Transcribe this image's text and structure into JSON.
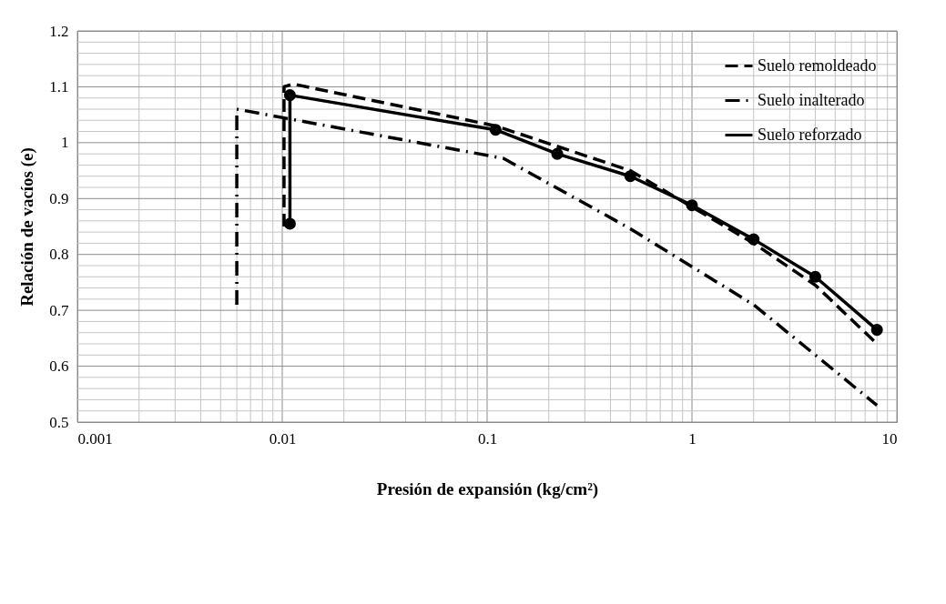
{
  "chart_data": {
    "type": "line",
    "xlabel": "Presión de expansión (kg/cm²)",
    "ylabel": "Relación de vacíos (e)",
    "log": "x",
    "grid": true,
    "legend": "top right",
    "xlim": [
      0.001,
      10
    ],
    "ylim": [
      0.5,
      1.2
    ],
    "xticks": [
      0.001,
      {
        "value": 0.002,
        "label": null
      },
      {
        "value": 0.003,
        "label": null
      },
      {
        "value": 0.004,
        "label": null
      },
      {
        "value": 0.005,
        "label": null
      },
      {
        "value": 0.006,
        "label": null
      },
      {
        "value": 0.007,
        "label": null
      },
      {
        "value": 0.008,
        "label": null
      },
      {
        "value": 0.009,
        "label": null
      },
      0.01,
      {
        "value": 0.02,
        "label": null
      },
      {
        "value": 0.03,
        "label": null
      },
      {
        "value": 0.04,
        "label": null
      },
      {
        "value": 0.05,
        "label": null
      },
      {
        "value": 0.06,
        "label": null
      },
      {
        "value": 0.07,
        "label": null
      },
      {
        "value": 0.08,
        "label": null
      },
      {
        "value": 0.09,
        "label": null
      },
      0.1,
      {
        "value": 0.2,
        "label": null
      },
      {
        "value": 0.3,
        "label": null
      },
      {
        "value": 0.4,
        "label": null
      },
      {
        "value": 0.5,
        "label": null
      },
      {
        "value": 0.6,
        "label": null
      },
      {
        "value": 0.7,
        "label": null
      },
      {
        "value": 0.8,
        "label": null
      },
      {
        "value": 0.9,
        "label": null
      },
      1,
      {
        "value": 2,
        "label": null
      },
      {
        "value": 3,
        "label": null
      },
      {
        "value": 4,
        "label": null
      },
      {
        "value": 5,
        "label": null
      },
      {
        "value": 6,
        "label": null
      },
      {
        "value": 7,
        "label": null
      },
      {
        "value": 8,
        "label": null
      },
      {
        "value": 9,
        "label": null
      },
      10
    ],
    "yticks": [
      0.5,
      {
        "value": 0.52,
        "label": null
      },
      {
        "value": 0.54,
        "label": null
      },
      {
        "value": 0.56,
        "label": null
      },
      {
        "value": 0.58,
        "label": null
      },
      0.6,
      {
        "value": 0.62,
        "label": null
      },
      {
        "value": 0.64,
        "label": null
      },
      {
        "value": 0.66,
        "label": null
      },
      {
        "value": 0.68,
        "label": null
      },
      0.7,
      {
        "value": 0.72,
        "label": null
      },
      {
        "value": 0.74,
        "label": null
      },
      {
        "value": 0.76,
        "label": null
      },
      {
        "value": 0.78,
        "label": null
      },
      0.8,
      {
        "value": 0.82,
        "label": null
      },
      {
        "value": 0.84,
        "label": null
      },
      {
        "value": 0.86,
        "label": null
      },
      {
        "value": 0.88,
        "label": null
      },
      0.9,
      {
        "value": 0.92,
        "label": null
      },
      {
        "value": 0.94,
        "label": null
      },
      {
        "value": 0.96,
        "label": null
      },
      {
        "value": 0.98,
        "label": null
      },
      1,
      {
        "value": 1.02,
        "label": null
      },
      {
        "value": 1.04,
        "label": null
      },
      {
        "value": 1.06,
        "label": null
      },
      {
        "value": 1.08,
        "label": null
      },
      1.1,
      {
        "value": 1.12,
        "label": null
      },
      {
        "value": 1.14,
        "label": null
      },
      {
        "value": 1.16,
        "label": null
      },
      {
        "value": 1.18,
        "label": null
      },
      1.2
    ],
    "series": [
      {
        "name": "Suelo remoldeado",
        "color": "#000000",
        "line_style": "dashed",
        "marker": "none",
        "x": [
          0.0102,
          0.0102,
          0.0113,
          0.11,
          0.5,
          1,
          2,
          4,
          8
        ],
        "values": [
          0.85,
          1.1,
          1.105,
          1.03,
          0.95,
          0.885,
          0.82,
          0.745,
          0.64
        ]
      },
      {
        "name": "Suelo inalterado",
        "color": "#000000",
        "line_style": "dashdot",
        "marker": "none",
        "x": [
          0.006,
          0.006,
          0.12,
          0.5,
          1,
          2,
          4,
          8
        ],
        "values": [
          0.71,
          1.06,
          0.972,
          0.846,
          0.778,
          0.71,
          0.62,
          0.53
        ]
      },
      {
        "name": "Suelo reforzado",
        "color": "#000000",
        "line_style": "solid",
        "marker": "circle",
        "x": [
          0.0109,
          0.0109,
          0.11,
          0.22,
          0.5,
          1,
          2,
          4,
          8
        ],
        "values": [
          0.855,
          1.085,
          1.023,
          0.98,
          0.94,
          0.888,
          0.827,
          0.76,
          0.665
        ]
      }
    ]
  }
}
